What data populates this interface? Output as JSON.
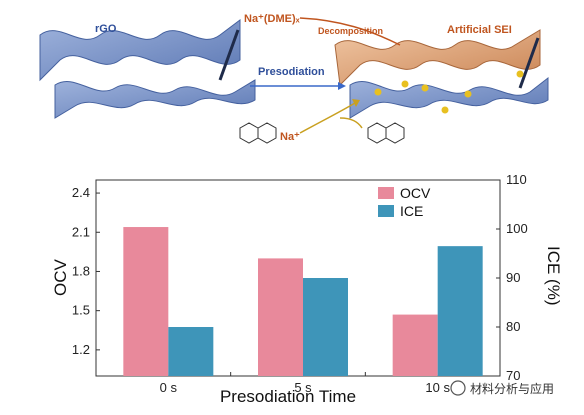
{
  "scheme": {
    "rgo_label": "rGO",
    "na_dme_label": "Na⁺(DME)ₓ",
    "decomposition_label": "Decomposition",
    "sei_label": "Artificial SEI",
    "presodiation_label": "Presodiation",
    "na_label": "Na⁺",
    "colors": {
      "sheet_blue": "#7a93c7",
      "sheet_copper": "#d9a07a",
      "na_dot": "#e8c020",
      "arrow_blue": "#3a68c8",
      "arrow_gold": "#c9a020"
    }
  },
  "chart_data": {
    "type": "bar",
    "categories": [
      "0 s",
      "5 s",
      "10 s"
    ],
    "xlabel": "Presodiation Time",
    "series": [
      {
        "name": "OCV",
        "axis": "left",
        "color": "#e8899b",
        "values": [
          2.14,
          1.9,
          1.47
        ]
      },
      {
        "name": "ICE",
        "axis": "right",
        "color": "#3e95b9",
        "values": [
          80.0,
          90.0,
          96.5
        ]
      }
    ],
    "y_left": {
      "label": "OCV",
      "range": [
        1.0,
        2.5
      ],
      "ticks": [
        "1.2",
        "1.5",
        "1.8",
        "2.1",
        "2.4"
      ]
    },
    "y_right": {
      "label": "ICE (%)",
      "range": [
        70,
        110
      ],
      "ticks": [
        "70",
        "80",
        "90",
        "100",
        "110"
      ]
    },
    "legend_position": "top-right",
    "grid": false
  },
  "watermark": {
    "text": "材料分析与应用"
  }
}
